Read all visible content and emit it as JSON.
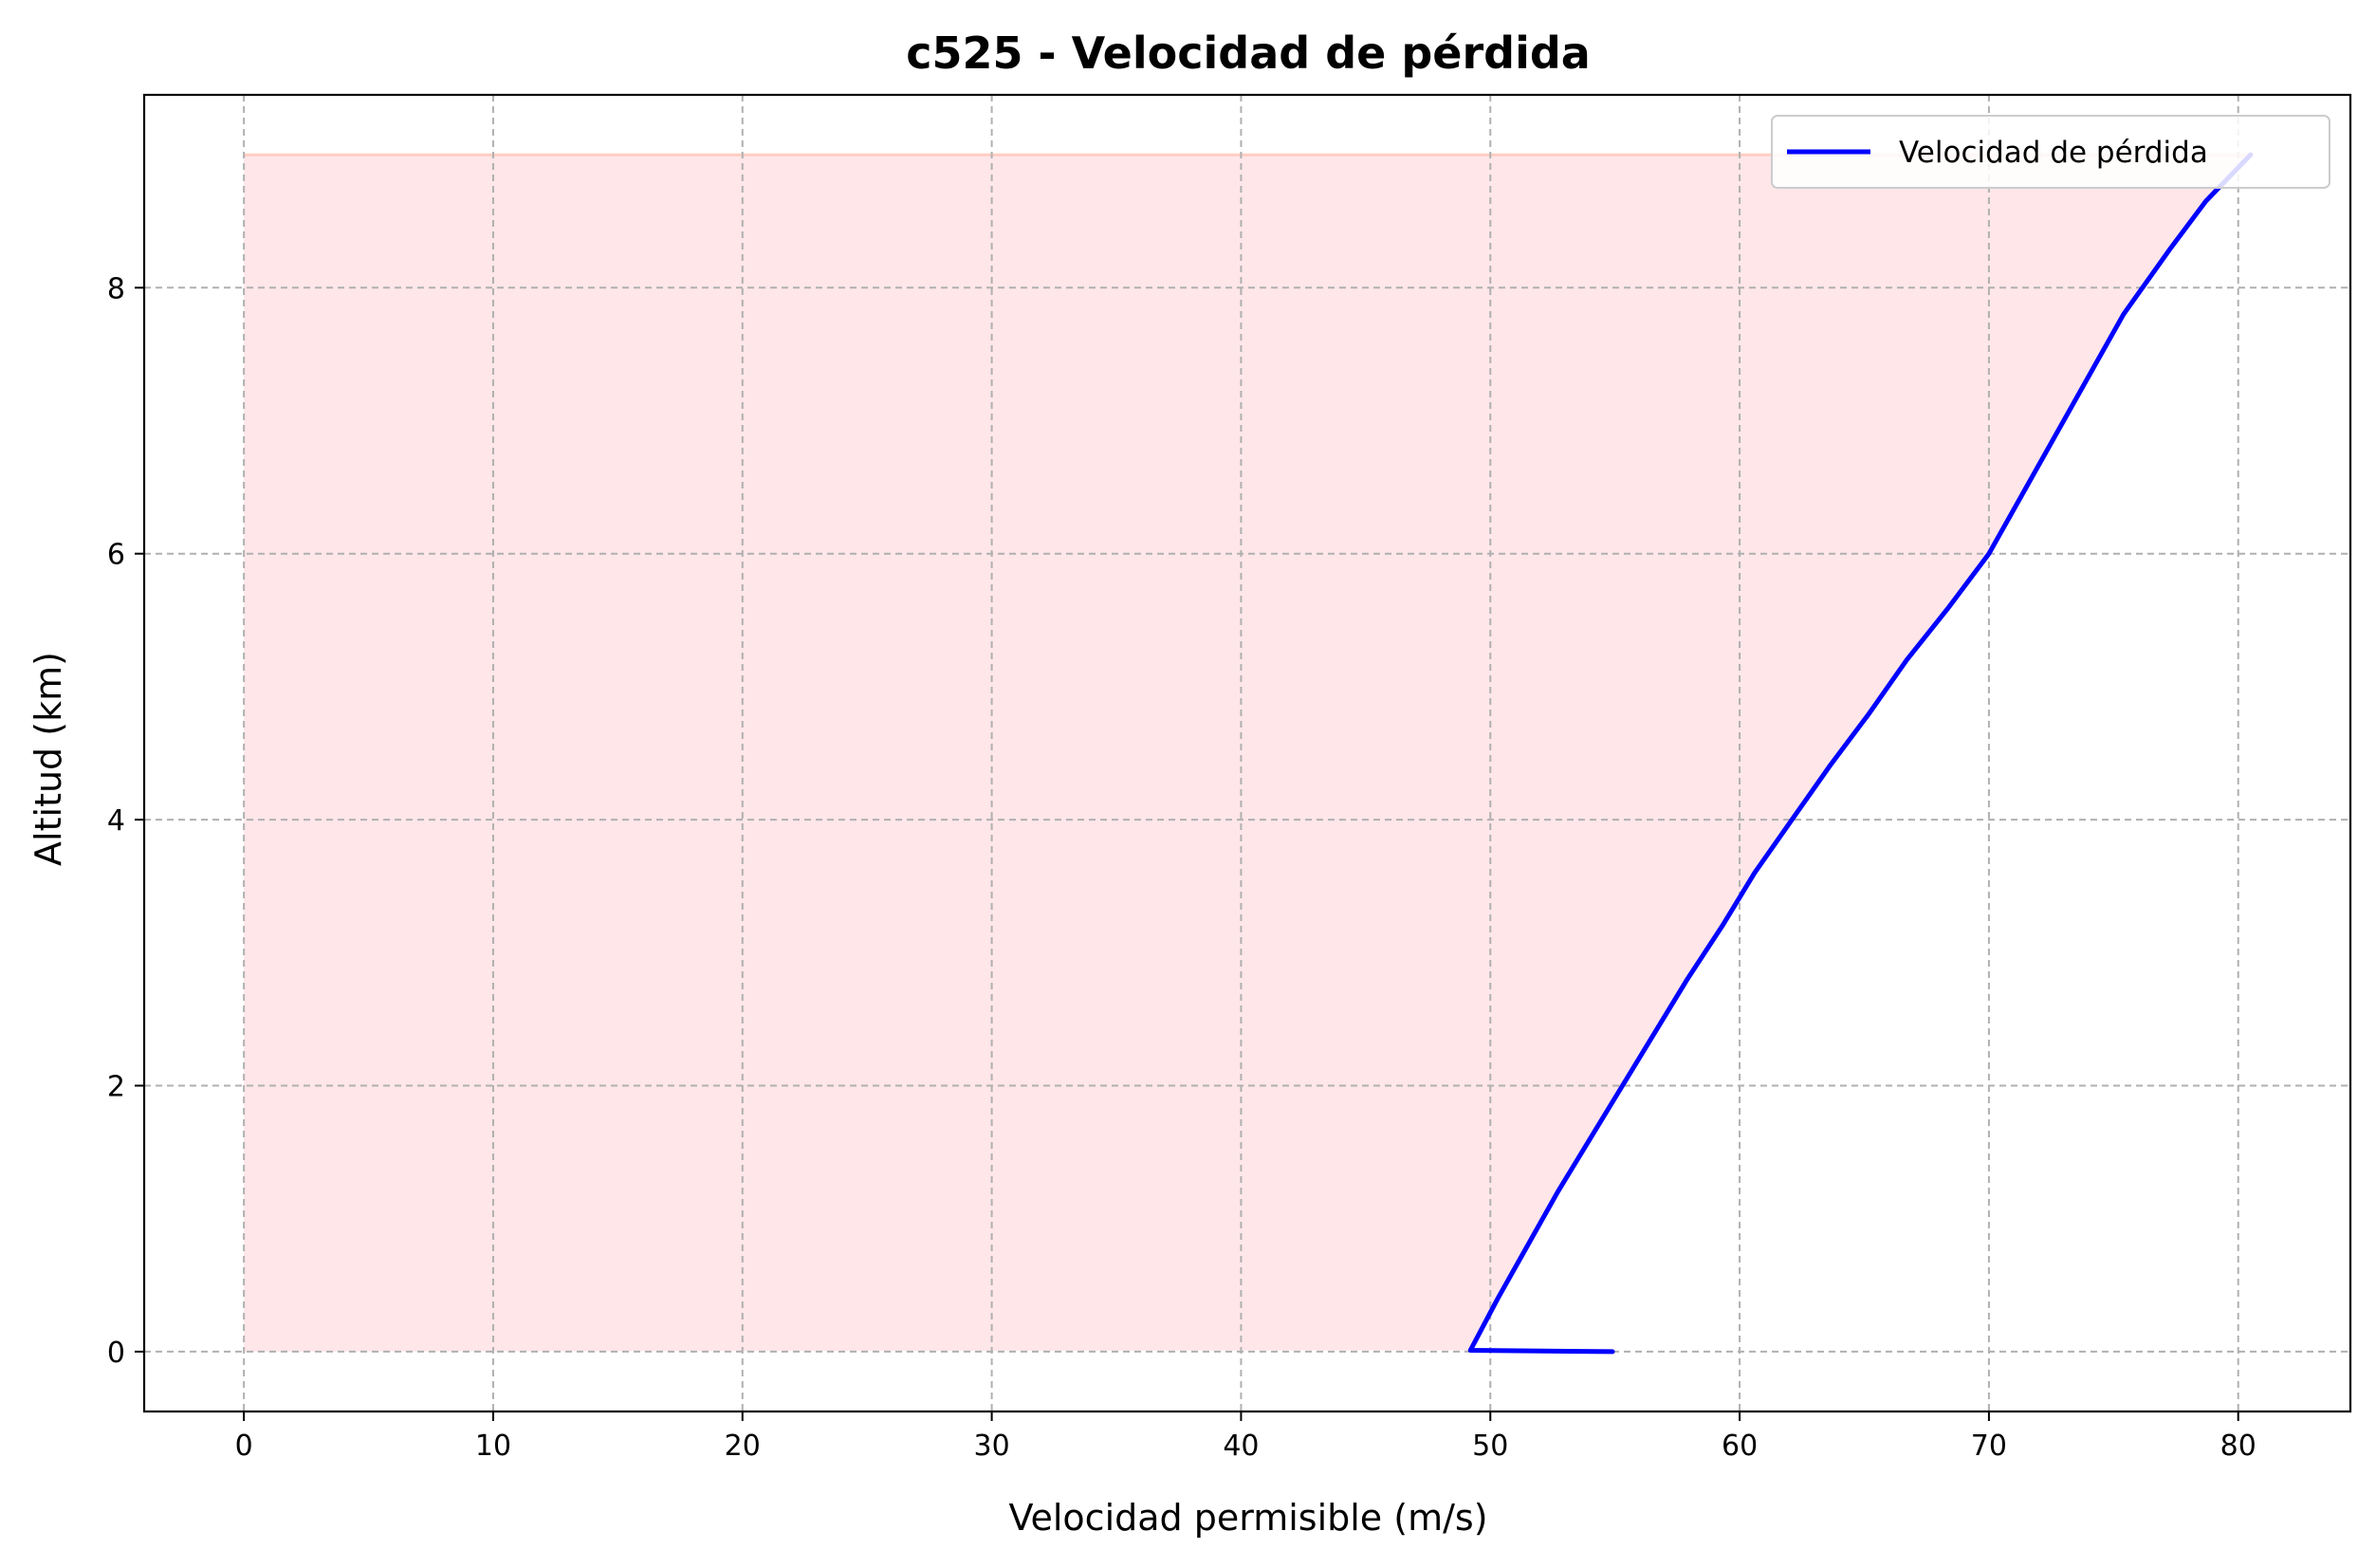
{
  "chart_data": {
    "type": "line",
    "title": "c525 - Velocidad de pérdida",
    "xlabel": "Velocidad permisible (m/s)",
    "ylabel": "Altitud (km)",
    "xlim": [
      -4,
      84.5
    ],
    "ylim": [
      -0.45,
      9.45
    ],
    "xticks": [
      0,
      10,
      20,
      30,
      40,
      50,
      60,
      70,
      80
    ],
    "yticks": [
      0,
      2,
      4,
      6,
      8
    ],
    "grid": true,
    "legend_position": "top-right",
    "series": [
      {
        "name": "Velocidad de pérdida",
        "color": "#0000ff",
        "x": [
          54.9,
          49.2,
          50.3,
          51.5,
          52.7,
          54.0,
          55.3,
          56.6,
          57.9,
          59.3,
          60.6,
          62.1,
          63.6,
          65.2,
          66.7,
          68.4,
          70.0,
          71.8,
          73.6,
          75.4,
          77.3,
          78.7,
          80.5
        ],
        "y": [
          0.0,
          0.01,
          0.4,
          0.8,
          1.2,
          1.6,
          2.0,
          2.4,
          2.8,
          3.2,
          3.6,
          4.0,
          4.4,
          4.8,
          5.2,
          5.6,
          6.0,
          6.6,
          7.2,
          7.8,
          8.3,
          8.65,
          9.0
        ]
      }
    ],
    "shaded_region": {
      "color": "#ffb6c1",
      "x_from": 0,
      "y_range": [
        0,
        9
      ]
    }
  }
}
